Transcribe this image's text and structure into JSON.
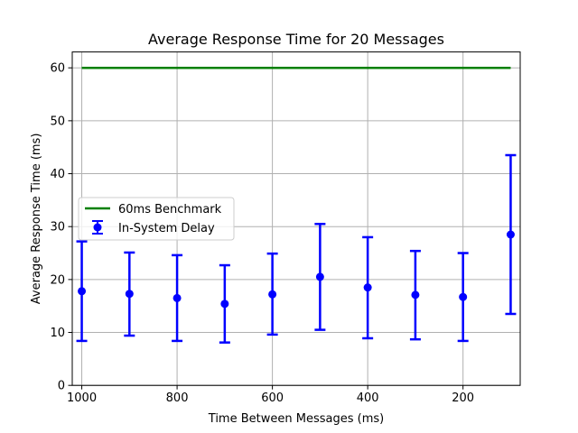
{
  "chart_data": {
    "type": "scatter",
    "title": "Average Response Time for 20 Messages",
    "xlabel": "Time Between Messages (ms)",
    "ylabel": "Average Response Time (ms)",
    "xlim": [
      1020,
      80
    ],
    "ylim": [
      0,
      63
    ],
    "x_ticks": [
      1000,
      800,
      600,
      400,
      200
    ],
    "x_tick_labels": [
      "1000",
      "800",
      "600",
      "400",
      "200"
    ],
    "y_ticks": [
      0,
      10,
      20,
      30,
      40,
      50,
      60
    ],
    "y_tick_labels": [
      "0",
      "10",
      "20",
      "30",
      "40",
      "50",
      "60"
    ],
    "grid": true,
    "legend_position": "center-left",
    "series": [
      {
        "name": "60ms Benchmark",
        "kind": "line",
        "color": "#008000",
        "x": [
          1000,
          100
        ],
        "y": [
          60,
          60
        ]
      },
      {
        "name": "In-System Delay",
        "kind": "errorbar",
        "color": "#0000ff",
        "x": [
          1000,
          900,
          800,
          700,
          600,
          500,
          400,
          300,
          200,
          100
        ],
        "y": [
          17.8,
          17.3,
          16.5,
          15.4,
          17.2,
          20.5,
          18.5,
          17.1,
          16.7,
          28.5
        ],
        "yerr_low": [
          8.4,
          9.4,
          8.4,
          8.1,
          9.6,
          10.5,
          8.9,
          8.7,
          8.4,
          13.5
        ],
        "yerr_high": [
          27.2,
          25.1,
          24.6,
          22.7,
          24.9,
          30.5,
          28.0,
          25.4,
          25.0,
          43.5
        ]
      }
    ]
  }
}
